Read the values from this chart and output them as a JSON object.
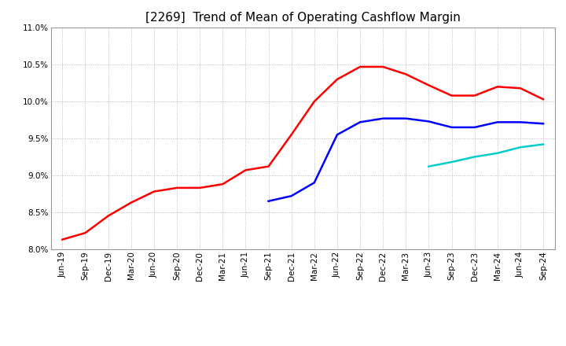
{
  "title": "[2269]  Trend of Mean of Operating Cashflow Margin",
  "x_labels": [
    "Jun-19",
    "Sep-19",
    "Dec-19",
    "Mar-20",
    "Jun-20",
    "Sep-20",
    "Dec-20",
    "Mar-21",
    "Jun-21",
    "Sep-21",
    "Dec-21",
    "Mar-22",
    "Jun-22",
    "Sep-22",
    "Dec-22",
    "Mar-23",
    "Jun-23",
    "Sep-23",
    "Dec-23",
    "Mar-24",
    "Jun-24",
    "Sep-24"
  ],
  "series_3y": {
    "color": "#FF0000",
    "data_x": [
      0,
      1,
      2,
      3,
      4,
      5,
      6,
      7,
      8,
      9,
      10,
      11,
      12,
      13,
      14,
      15,
      16,
      17,
      18,
      19,
      20,
      21
    ],
    "data_y": [
      8.13,
      8.22,
      8.45,
      8.63,
      8.78,
      8.83,
      8.83,
      8.88,
      9.07,
      9.12,
      9.55,
      10.0,
      10.3,
      10.47,
      10.47,
      10.37,
      10.22,
      10.08,
      10.08,
      10.2,
      10.18,
      10.03
    ]
  },
  "series_5y": {
    "color": "#0000FF",
    "data_x": [
      9,
      10,
      11,
      12,
      13,
      14,
      15,
      16,
      17,
      18,
      19,
      20,
      21
    ],
    "data_y": [
      8.65,
      8.72,
      8.9,
      9.55,
      9.72,
      9.77,
      9.77,
      9.73,
      9.65,
      9.65,
      9.72,
      9.72,
      9.7
    ]
  },
  "series_7y": {
    "color": "#00CCCC",
    "data_x": [
      16,
      17,
      18,
      19,
      20,
      21
    ],
    "data_y": [
      9.12,
      9.18,
      9.25,
      9.3,
      9.38,
      9.42
    ]
  },
  "series_10y": {
    "color": "#008000",
    "data_x": [],
    "data_y": []
  },
  "ylim": [
    8.0,
    11.0
  ],
  "yticks": [
    8.0,
    8.5,
    9.0,
    9.5,
    10.0,
    10.5,
    11.0
  ],
  "background_color": "#ffffff",
  "plot_bg_color": "#ffffff",
  "grid_color": "#aaaaaa",
  "title_fontsize": 11,
  "tick_fontsize": 7.5,
  "legend_fontsize": 8.5
}
